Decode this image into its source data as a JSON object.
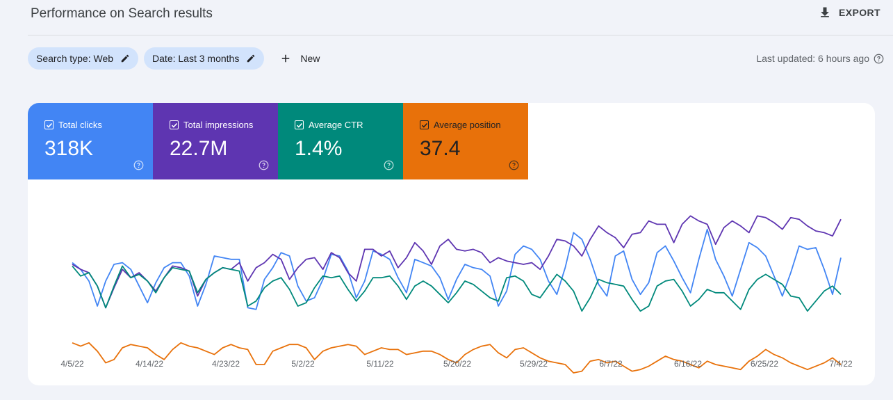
{
  "header": {
    "title": "Performance on Search results",
    "export_label": "EXPORT"
  },
  "filters": {
    "chips": [
      {
        "label": "Search type: Web"
      },
      {
        "label": "Date: Last 3 months"
      }
    ],
    "new_label": "New"
  },
  "last_updated": "Last updated: 6 hours ago",
  "metrics": [
    {
      "label": "Total clicks",
      "value": "318K",
      "color": "#4285f4",
      "checked": true
    },
    {
      "label": "Total impressions",
      "value": "22.7M",
      "color": "#5e35b1",
      "checked": true
    },
    {
      "label": "Average CTR",
      "value": "1.4%",
      "color": "#00897b",
      "checked": true
    },
    {
      "label": "Average position",
      "value": "37.4",
      "color": "#e8710a",
      "checked": true
    }
  ],
  "chart_data": {
    "type": "line",
    "x_ticks": [
      "4/5/22",
      "4/14/22",
      "4/23/22",
      "5/2/22",
      "5/11/22",
      "5/20/22",
      "5/29/22",
      "6/7/22",
      "6/16/22",
      "6/25/22",
      "7/4/22"
    ],
    "y_axis_labels_shown": false,
    "grid": false,
    "series": [
      {
        "name": "Total clicks",
        "color": "#4285f4",
        "values": [
          0.56,
          0.52,
          0.45,
          0.3,
          0.45,
          0.55,
          0.56,
          0.52,
          0.42,
          0.32,
          0.44,
          0.53,
          0.56,
          0.56,
          0.48,
          0.3,
          0.43,
          0.6,
          0.59,
          0.58,
          0.58,
          0.29,
          0.28,
          0.46,
          0.53,
          0.62,
          0.6,
          0.42,
          0.33,
          0.35,
          0.46,
          0.61,
          0.6,
          0.51,
          0.35,
          0.45,
          0.63,
          0.61,
          0.58,
          0.47,
          0.38,
          0.58,
          0.56,
          0.54,
          0.47,
          0.34,
          0.46,
          0.55,
          0.53,
          0.52,
          0.48,
          0.3,
          0.39,
          0.61,
          0.66,
          0.64,
          0.58,
          0.45,
          0.37,
          0.53,
          0.74,
          0.7,
          0.58,
          0.43,
          0.36,
          0.6,
          0.63,
          0.46,
          0.37,
          0.44,
          0.62,
          0.66,
          0.57,
          0.47,
          0.38,
          0.58,
          0.76,
          0.58,
          0.48,
          0.36,
          0.52,
          0.68,
          0.65,
          0.6,
          0.48,
          0.36,
          0.5,
          0.66,
          0.64,
          0.65,
          0.52,
          0.37,
          0.59
        ]
      },
      {
        "name": "Total impressions",
        "color": "#5e35b1",
        "values": [
          0.55,
          0.52,
          0.5,
          0.42,
          0.29,
          0.41,
          0.52,
          0.47,
          0.5,
          0.45,
          0.39,
          0.47,
          0.54,
          0.53,
          0.51,
          0.36,
          0.46,
          0.5,
          0.53,
          0.52,
          0.56,
          0.45,
          0.53,
          0.56,
          0.61,
          0.58,
          0.46,
          0.53,
          0.58,
          0.59,
          0.52,
          0.62,
          0.59,
          0.5,
          0.45,
          0.64,
          0.64,
          0.6,
          0.63,
          0.53,
          0.59,
          0.68,
          0.63,
          0.55,
          0.66,
          0.7,
          0.64,
          0.63,
          0.64,
          0.62,
          0.56,
          0.59,
          0.57,
          0.56,
          0.55,
          0.56,
          0.52,
          0.6,
          0.7,
          0.69,
          0.66,
          0.6,
          0.7,
          0.78,
          0.74,
          0.71,
          0.65,
          0.73,
          0.74,
          0.81,
          0.79,
          0.79,
          0.68,
          0.79,
          0.84,
          0.81,
          0.79,
          0.67,
          0.77,
          0.81,
          0.78,
          0.74,
          0.84,
          0.83,
          0.8,
          0.76,
          0.83,
          0.82,
          0.78,
          0.75,
          0.74,
          0.72,
          0.82
        ]
      },
      {
        "name": "Average CTR",
        "color": "#00897b",
        "values": [
          0.54,
          0.48,
          0.5,
          0.42,
          0.29,
          0.42,
          0.54,
          0.47,
          0.49,
          0.45,
          0.38,
          0.47,
          0.53,
          0.52,
          0.51,
          0.38,
          0.46,
          0.5,
          0.53,
          0.52,
          0.51,
          0.3,
          0.33,
          0.41,
          0.45,
          0.47,
          0.4,
          0.3,
          0.32,
          0.41,
          0.48,
          0.47,
          0.48,
          0.4,
          0.33,
          0.39,
          0.47,
          0.47,
          0.48,
          0.42,
          0.34,
          0.42,
          0.45,
          0.42,
          0.37,
          0.32,
          0.38,
          0.45,
          0.43,
          0.39,
          0.35,
          0.33,
          0.47,
          0.48,
          0.45,
          0.37,
          0.35,
          0.42,
          0.49,
          0.45,
          0.39,
          0.27,
          0.35,
          0.46,
          0.44,
          0.43,
          0.42,
          0.34,
          0.27,
          0.3,
          0.42,
          0.45,
          0.46,
          0.39,
          0.3,
          0.34,
          0.4,
          0.38,
          0.38,
          0.33,
          0.28,
          0.4,
          0.46,
          0.49,
          0.46,
          0.43,
          0.36,
          0.35,
          0.27,
          0.33,
          0.39,
          0.42,
          0.37
        ]
      },
      {
        "name": "Average position",
        "color": "#e8710a",
        "values": [
          0.08,
          0.06,
          0.08,
          0.03,
          -0.04,
          -0.02,
          0.05,
          0.07,
          0.06,
          0.05,
          0.01,
          -0.02,
          0.04,
          0.08,
          0.06,
          0.05,
          0.03,
          0.01,
          0.05,
          0.07,
          0.05,
          0.04,
          -0.05,
          -0.05,
          0.03,
          0.05,
          0.07,
          0.07,
          0.05,
          -0.02,
          0.03,
          0.05,
          0.06,
          0.07,
          0.06,
          0.01,
          0.03,
          0.05,
          0.04,
          0.04,
          0.01,
          0.02,
          0.03,
          0.03,
          0.01,
          -0.02,
          -0.04,
          0.01,
          0.04,
          0.06,
          0.07,
          0.02,
          -0.01,
          0.04,
          0.05,
          0.02,
          -0.01,
          -0.03,
          -0.04,
          -0.05,
          -0.1,
          -0.09,
          -0.03,
          -0.02,
          -0.04,
          -0.03,
          -0.06,
          -0.09,
          -0.08,
          -0.06,
          -0.03,
          0.0,
          -0.02,
          -0.03,
          -0.05,
          -0.07,
          -0.03,
          -0.05,
          -0.06,
          -0.07,
          -0.08,
          -0.03,
          0.0,
          0.04,
          0.01,
          -0.01,
          -0.04,
          -0.06,
          -0.08,
          -0.06,
          -0.04,
          -0.01,
          -0.05
        ]
      }
    ]
  }
}
